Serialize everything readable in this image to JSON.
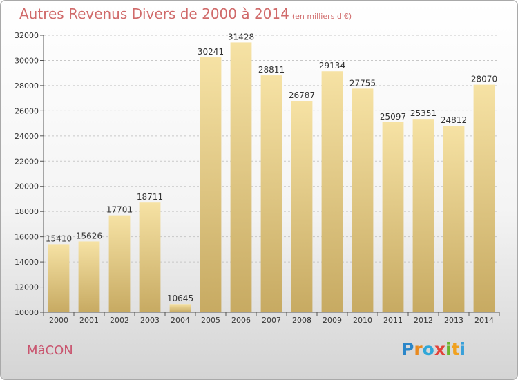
{
  "title": "Autres Revenus Divers de 2000 à 2014",
  "subtitle": "(en milliers d'€)",
  "city": "MâCON",
  "logo": {
    "letters": [
      "P",
      "r",
      "o",
      "x",
      "i",
      "t",
      "i"
    ],
    "colors": [
      "#2a86c9",
      "#e98a1f",
      "#2fa7d8",
      "#e2433a",
      "#6bb62d",
      "#f0a11f",
      "#3aa0d9"
    ]
  },
  "colors": {
    "bar_light": "#f6e2a4",
    "bar_dark": "#c7aa62",
    "title": "#d06a6a",
    "city": "#c9546e"
  },
  "chart_data": {
    "type": "bar",
    "categories": [
      "2000",
      "2001",
      "2002",
      "2003",
      "2004",
      "2005",
      "2006",
      "2007",
      "2008",
      "2009",
      "2010",
      "2011",
      "2012",
      "2013",
      "2014"
    ],
    "values": [
      15410,
      15626,
      17701,
      18711,
      10645,
      30241,
      31428,
      28811,
      26787,
      29134,
      27755,
      25097,
      25351,
      24812,
      28070
    ],
    "ylim": [
      10000,
      32000
    ],
    "yticks": [
      10000,
      12000,
      14000,
      16000,
      18000,
      20000,
      22000,
      24000,
      26000,
      28000,
      30000,
      32000
    ],
    "grid": "horizontal dashed"
  }
}
